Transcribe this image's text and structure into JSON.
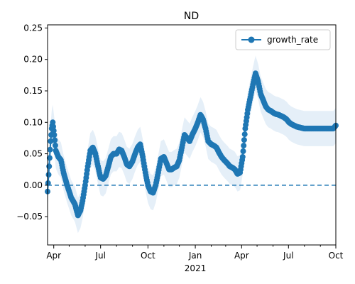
{
  "chart_data": {
    "type": "line",
    "title": "ND",
    "xlabel": "",
    "ylabel": "",
    "x_start": "2020-03-20",
    "x_end": "2021-10-01",
    "ylim": [
      -0.095,
      0.255
    ],
    "y_ticks": [
      -0.05,
      0.0,
      0.05,
      0.1,
      0.15,
      0.2,
      0.25
    ],
    "y_tick_labels": [
      "−0.05",
      "0.00",
      "0.05",
      "0.10",
      "0.15",
      "0.20",
      "0.25"
    ],
    "x_ticks": [
      {
        "date": "2020-04-01",
        "label": "Apr"
      },
      {
        "date": "2020-07-01",
        "label": "Jul"
      },
      {
        "date": "2020-10-01",
        "label": "Oct"
      },
      {
        "date": "2021-01-01",
        "label": "Jan"
      },
      {
        "date": "2021-04-01",
        "label": "Apr"
      },
      {
        "date": "2021-07-01",
        "label": "Jul"
      },
      {
        "date": "2021-10-01",
        "label": "Oct"
      }
    ],
    "x_minor_ticks": [
      "2020-05-01",
      "2020-06-01",
      "2020-08-01",
      "2020-09-01",
      "2020-11-01",
      "2020-12-01",
      "2021-02-01",
      "2021-03-01",
      "2021-05-01",
      "2021-06-01",
      "2021-08-01",
      "2021-09-01"
    ],
    "x_secondary_label": "2021",
    "legend": {
      "placement": "top-right",
      "entries": [
        "growth_rate"
      ]
    },
    "reference_line": {
      "y": 0.0,
      "style": "dashed"
    },
    "colors": {
      "line": "#1f77b4",
      "band": "#c6dbef"
    },
    "series": [
      {
        "name": "growth_rate",
        "x": [
          "2020-03-20",
          "2020-03-23",
          "2020-03-26",
          "2020-03-28",
          "2020-03-30",
          "2020-04-02",
          "2020-04-05",
          "2020-04-10",
          "2020-04-15",
          "2020-04-20",
          "2020-04-27",
          "2020-05-05",
          "2020-05-12",
          "2020-05-18",
          "2020-05-23",
          "2020-05-27",
          "2020-06-01",
          "2020-06-06",
          "2020-06-11",
          "2020-06-16",
          "2020-06-21",
          "2020-06-26",
          "2020-07-01",
          "2020-07-06",
          "2020-07-11",
          "2020-07-16",
          "2020-07-21",
          "2020-07-26",
          "2020-08-01",
          "2020-08-06",
          "2020-08-11",
          "2020-08-16",
          "2020-08-21",
          "2020-08-26",
          "2020-09-01",
          "2020-09-06",
          "2020-09-11",
          "2020-09-16",
          "2020-09-21",
          "2020-09-26",
          "2020-10-01",
          "2020-10-06",
          "2020-10-11",
          "2020-10-16",
          "2020-10-21",
          "2020-10-26",
          "2020-11-01",
          "2020-11-06",
          "2020-11-11",
          "2020-11-16",
          "2020-11-21",
          "2020-11-26",
          "2020-12-01",
          "2020-12-06",
          "2020-12-11",
          "2020-12-16",
          "2020-12-21",
          "2020-12-26",
          "2021-01-01",
          "2021-01-06",
          "2021-01-11",
          "2021-01-16",
          "2021-01-21",
          "2021-01-26",
          "2021-02-01",
          "2021-02-06",
          "2021-02-11",
          "2021-02-16",
          "2021-02-21",
          "2021-02-26",
          "2021-03-04",
          "2021-03-09",
          "2021-03-14",
          "2021-03-19",
          "2021-03-24",
          "2021-03-29",
          "2021-04-03",
          "2021-04-08",
          "2021-04-13",
          "2021-04-18",
          "2021-04-23",
          "2021-04-28",
          "2021-05-03",
          "2021-05-08",
          "2021-05-13",
          "2021-05-18",
          "2021-05-23",
          "2021-05-28",
          "2021-06-02",
          "2021-06-07",
          "2021-06-12",
          "2021-06-17",
          "2021-06-22",
          "2021-06-27",
          "2021-07-02",
          "2021-07-07",
          "2021-07-12",
          "2021-07-17",
          "2021-07-22",
          "2021-07-27",
          "2021-08-01",
          "2021-08-06",
          "2021-08-11",
          "2021-08-16",
          "2021-08-21",
          "2021-08-26",
          "2021-09-01",
          "2021-09-06",
          "2021-09-11",
          "2021-09-16",
          "2021-09-21",
          "2021-09-26",
          "2021-10-01"
        ],
        "y": [
          -0.01,
          0.03,
          0.07,
          0.09,
          0.1,
          0.08,
          0.055,
          0.045,
          0.04,
          0.02,
          0.0,
          -0.02,
          -0.03,
          -0.048,
          -0.04,
          -0.025,
          0.0,
          0.03,
          0.055,
          0.06,
          0.05,
          0.03,
          0.012,
          0.01,
          0.015,
          0.03,
          0.045,
          0.05,
          0.05,
          0.057,
          0.055,
          0.045,
          0.033,
          0.03,
          0.038,
          0.05,
          0.06,
          0.065,
          0.045,
          0.02,
          0.0,
          -0.01,
          -0.012,
          0.0,
          0.02,
          0.042,
          0.045,
          0.035,
          0.025,
          0.025,
          0.028,
          0.03,
          0.04,
          0.06,
          0.08,
          0.075,
          0.07,
          0.08,
          0.09,
          0.1,
          0.112,
          0.105,
          0.09,
          0.07,
          0.065,
          0.063,
          0.06,
          0.052,
          0.045,
          0.04,
          0.035,
          0.03,
          0.028,
          0.025,
          0.018,
          0.02,
          0.045,
          0.09,
          0.12,
          0.14,
          0.16,
          0.178,
          0.165,
          0.145,
          0.135,
          0.125,
          0.12,
          0.118,
          0.115,
          0.113,
          0.112,
          0.11,
          0.108,
          0.105,
          0.1,
          0.097,
          0.095,
          0.093,
          0.092,
          0.091,
          0.09,
          0.09,
          0.09,
          0.09,
          0.09,
          0.09,
          0.09,
          0.09,
          0.09,
          0.09,
          0.09,
          0.09,
          0.095
        ]
      }
    ]
  }
}
